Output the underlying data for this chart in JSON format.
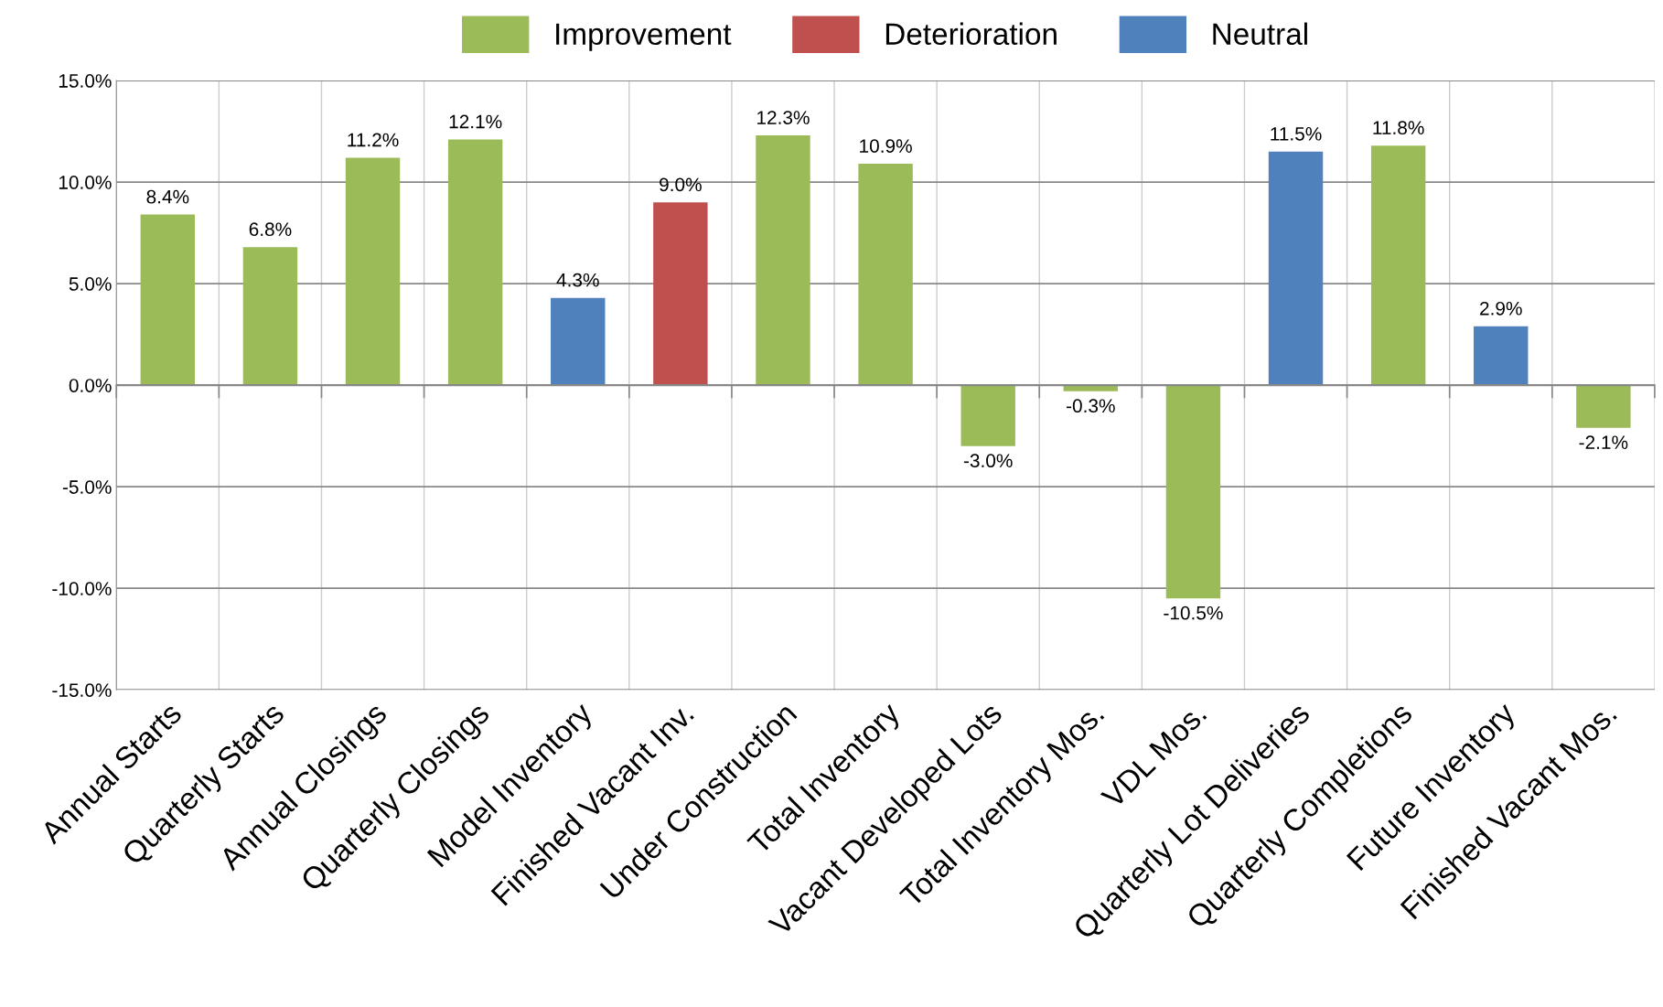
{
  "chart_data": {
    "type": "bar",
    "categories": [
      "Annual Starts",
      "Quarterly Starts",
      "Annual Closings",
      "Quarterly Closings",
      "Model Inventory",
      "Finished Vacant Inv.",
      "Under Construction",
      "Total Inventory",
      "Vacant Developed Lots",
      "Total Inventory Mos.",
      "VDL Mos.",
      "Quarterly Lot Deliveries",
      "Quarterly Completions",
      "Future Inventory",
      "Finished Vacant Mos."
    ],
    "series": [
      {
        "name": "Improvement",
        "color": "#9bbb59",
        "values": [
          8.4,
          6.8,
          11.2,
          12.1,
          null,
          null,
          12.3,
          10.9,
          -3.0,
          -0.3,
          -10.5,
          null,
          11.8,
          null,
          -2.1
        ],
        "value_labels": [
          "8.4%",
          "6.8%",
          "11.2%",
          "12.1%",
          null,
          null,
          "12.3%",
          "10.9%",
          "-3.0%",
          "-0.3%",
          "-10.5%",
          null,
          "11.8%",
          null,
          "-2.1%"
        ]
      },
      {
        "name": "Deterioration",
        "color": "#c0504d",
        "values": [
          null,
          null,
          null,
          null,
          null,
          9.0,
          null,
          null,
          null,
          null,
          null,
          null,
          null,
          null,
          null
        ],
        "value_labels": [
          null,
          null,
          null,
          null,
          null,
          "9.0%",
          null,
          null,
          null,
          null,
          null,
          null,
          null,
          null,
          null
        ]
      },
      {
        "name": "Neutral",
        "color": "#4f81bd",
        "values": [
          null,
          null,
          null,
          null,
          4.3,
          null,
          null,
          null,
          null,
          null,
          null,
          11.5,
          null,
          2.9,
          null
        ],
        "value_labels": [
          null,
          null,
          null,
          null,
          "4.3%",
          null,
          null,
          null,
          null,
          null,
          null,
          "11.5%",
          null,
          "2.9%",
          null
        ]
      }
    ],
    "ylim": [
      -15,
      15
    ],
    "yticks": [
      {
        "value": -15,
        "label": "-15.0%"
      },
      {
        "value": -10,
        "label": "-10.0%"
      },
      {
        "value": -5,
        "label": "-5.0%"
      },
      {
        "value": 0,
        "label": "0.0%"
      },
      {
        "value": 5,
        "label": "5.0%"
      },
      {
        "value": 10,
        "label": "10.0%"
      },
      {
        "value": 15,
        "label": "15.0%"
      }
    ],
    "grid": true,
    "legend": "top"
  }
}
